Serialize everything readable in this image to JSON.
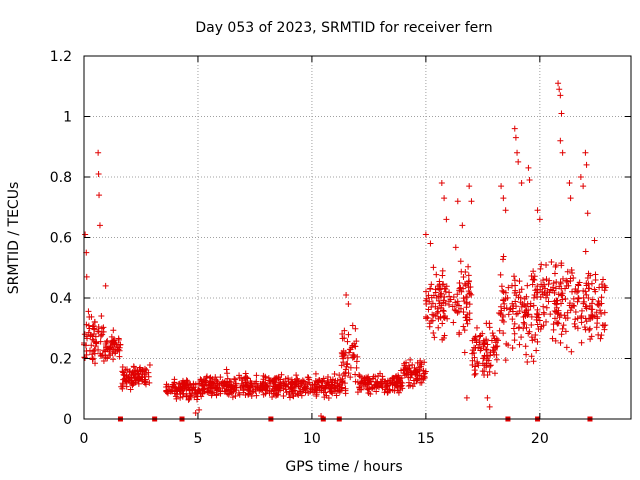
{
  "chart_data": {
    "type": "scatter",
    "title": "Day 053 of 2023, SRMTID for receiver fern",
    "xlabel": "GPS time / hours",
    "ylabel": "SRMTID / TECUs",
    "xlim": [
      0,
      24
    ],
    "ylim": [
      0,
      1.2
    ],
    "x_ticks": [
      0,
      5,
      10,
      15,
      20
    ],
    "x_tick_labels": [
      "0",
      "5",
      "10",
      "15",
      "20"
    ],
    "y_ticks": [
      0,
      0.2,
      0.4,
      0.6,
      0.8,
      1.0,
      1.2
    ],
    "y_tick_labels": [
      "0",
      "0.2",
      "0.4",
      "0.6",
      "0.8",
      "1",
      "1.2"
    ],
    "grid": true,
    "marker": "+",
    "series_color": "#e00000",
    "segments": [
      {
        "x_start": 0.0,
        "x_end": 0.9,
        "mean": 0.26,
        "spread": 0.09
      },
      {
        "x_start": 0.9,
        "x_end": 1.6,
        "mean": 0.24,
        "spread": 0.05
      },
      {
        "x_start": 1.6,
        "x_end": 2.9,
        "mean": 0.14,
        "spread": 0.04
      },
      {
        "x_start": 3.6,
        "x_end": 5.0,
        "mean": 0.1,
        "spread": 0.035
      },
      {
        "x_start": 5.0,
        "x_end": 7.5,
        "mean": 0.11,
        "spread": 0.04
      },
      {
        "x_start": 7.5,
        "x_end": 10.5,
        "mean": 0.11,
        "spread": 0.035
      },
      {
        "x_start": 10.5,
        "x_end": 11.5,
        "mean": 0.11,
        "spread": 0.035
      },
      {
        "x_start": 11.3,
        "x_end": 12.0,
        "mean": 0.22,
        "spread": 0.08
      },
      {
        "x_start": 12.0,
        "x_end": 14.0,
        "mean": 0.12,
        "spread": 0.035
      },
      {
        "x_start": 14.0,
        "x_end": 15.0,
        "mean": 0.15,
        "spread": 0.05
      },
      {
        "x_start": 15.0,
        "x_end": 17.0,
        "mean": 0.38,
        "spread": 0.14
      },
      {
        "x_start": 17.0,
        "x_end": 18.2,
        "mean": 0.22,
        "spread": 0.09
      },
      {
        "x_start": 18.2,
        "x_end": 20.0,
        "mean": 0.36,
        "spread": 0.14
      },
      {
        "x_start": 20.0,
        "x_end": 22.9,
        "mean": 0.38,
        "spread": 0.14
      }
    ],
    "peaks": [
      {
        "x": 0.05,
        "y": 0.61
      },
      {
        "x": 0.1,
        "y": 0.55
      },
      {
        "x": 0.12,
        "y": 0.47
      },
      {
        "x": 0.62,
        "y": 0.88
      },
      {
        "x": 0.64,
        "y": 0.81
      },
      {
        "x": 0.66,
        "y": 0.74
      },
      {
        "x": 0.7,
        "y": 0.64
      },
      {
        "x": 0.95,
        "y": 0.44
      },
      {
        "x": 11.5,
        "y": 0.41
      },
      {
        "x": 11.6,
        "y": 0.38
      },
      {
        "x": 15.0,
        "y": 0.61
      },
      {
        "x": 15.2,
        "y": 0.58
      },
      {
        "x": 15.7,
        "y": 0.78
      },
      {
        "x": 15.8,
        "y": 0.73
      },
      {
        "x": 15.9,
        "y": 0.66
      },
      {
        "x": 16.4,
        "y": 0.72
      },
      {
        "x": 16.6,
        "y": 0.64
      },
      {
        "x": 16.9,
        "y": 0.77
      },
      {
        "x": 17.0,
        "y": 0.72
      },
      {
        "x": 18.3,
        "y": 0.77
      },
      {
        "x": 18.4,
        "y": 0.73
      },
      {
        "x": 18.5,
        "y": 0.69
      },
      {
        "x": 18.9,
        "y": 0.96
      },
      {
        "x": 18.95,
        "y": 0.93
      },
      {
        "x": 19.0,
        "y": 0.88
      },
      {
        "x": 19.05,
        "y": 0.85
      },
      {
        "x": 19.2,
        "y": 0.78
      },
      {
        "x": 19.5,
        "y": 0.83
      },
      {
        "x": 19.55,
        "y": 0.79
      },
      {
        "x": 19.9,
        "y": 0.69
      },
      {
        "x": 20.0,
        "y": 0.66
      },
      {
        "x": 20.8,
        "y": 1.11
      },
      {
        "x": 20.85,
        "y": 1.09
      },
      {
        "x": 20.9,
        "y": 1.07
      },
      {
        "x": 20.95,
        "y": 1.01
      },
      {
        "x": 20.9,
        "y": 0.92
      },
      {
        "x": 21.0,
        "y": 0.88
      },
      {
        "x": 21.3,
        "y": 0.78
      },
      {
        "x": 21.35,
        "y": 0.73
      },
      {
        "x": 21.8,
        "y": 0.8
      },
      {
        "x": 21.9,
        "y": 0.77
      },
      {
        "x": 22.0,
        "y": 0.88
      },
      {
        "x": 22.05,
        "y": 0.84
      },
      {
        "x": 22.1,
        "y": 0.68
      },
      {
        "x": 22.4,
        "y": 0.59
      }
    ],
    "lows": [
      {
        "x": 17.8,
        "y": 0.04
      },
      {
        "x": 17.7,
        "y": 0.07
      },
      {
        "x": 16.8,
        "y": 0.07
      },
      {
        "x": 10.4,
        "y": 0.01
      },
      {
        "x": 4.9,
        "y": 0.02
      },
      {
        "x": 5.05,
        "y": 0.03
      }
    ],
    "baseline_markers": [
      {
        "x": 1.6,
        "y": 0
      },
      {
        "x": 3.1,
        "y": 0
      },
      {
        "x": 4.3,
        "y": 0
      },
      {
        "x": 8.2,
        "y": 0
      },
      {
        "x": 10.5,
        "y": 0
      },
      {
        "x": 11.2,
        "y": 0
      },
      {
        "x": 18.6,
        "y": 0
      },
      {
        "x": 19.9,
        "y": 0
      },
      {
        "x": 22.2,
        "y": 0
      }
    ]
  }
}
